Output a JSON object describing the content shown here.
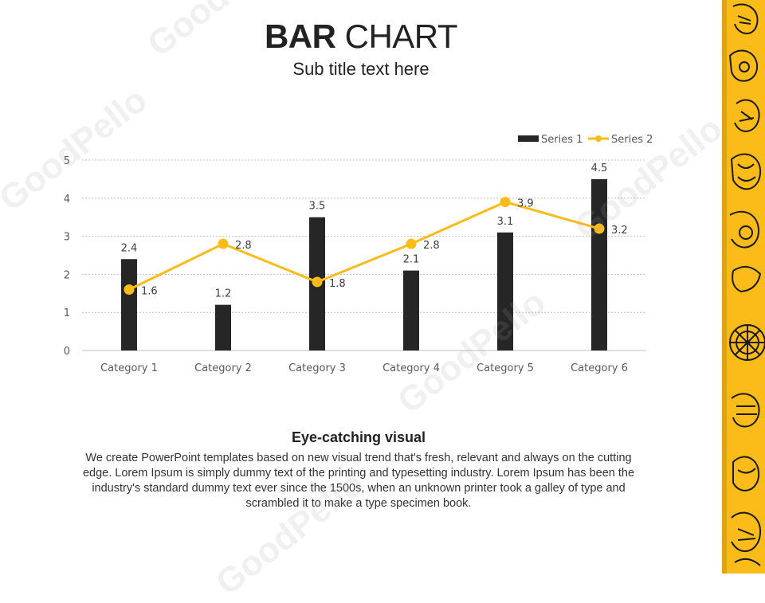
{
  "title": {
    "bold": "BAR",
    "rest": " CHART"
  },
  "subtitle": "Sub title text here",
  "description": {
    "heading": "Eye-catching visual",
    "body": "We create PowerPoint templates based on new visual trend that's fresh, relevant and always on the cutting edge. Lorem Ipsum is simply dummy text of the printing and typesetting industry. Lorem Ipsum has been the industry's standard dummy text ever since the 1500s, when an unknown printer took a galley of type and scrambled it to make a type specimen book."
  },
  "watermark": "GoodPello",
  "colors": {
    "series1": "#262626",
    "series2": "#fbbc1a",
    "grid": "#bfbfbf",
    "axis_text": "#595959",
    "strip": "#fbbc1a",
    "strip_art": "#1a1a1a"
  },
  "chart_data": {
    "type": "bar",
    "categories": [
      "Category 1",
      "Category 2",
      "Category 3",
      "Category 4",
      "Category 5",
      "Category 6"
    ],
    "series": [
      {
        "name": "Series 1",
        "type": "bar",
        "values": [
          2.4,
          1.2,
          3.5,
          2.1,
          3.1,
          4.5
        ]
      },
      {
        "name": "Series 2",
        "type": "line",
        "values": [
          1.6,
          2.8,
          1.8,
          2.8,
          3.9,
          3.2
        ]
      }
    ],
    "ylim": [
      0,
      5
    ],
    "yticks": [
      0,
      1,
      2,
      3,
      4,
      5
    ],
    "grid": true,
    "legend": "top-right",
    "xlabel": "",
    "ylabel": ""
  }
}
